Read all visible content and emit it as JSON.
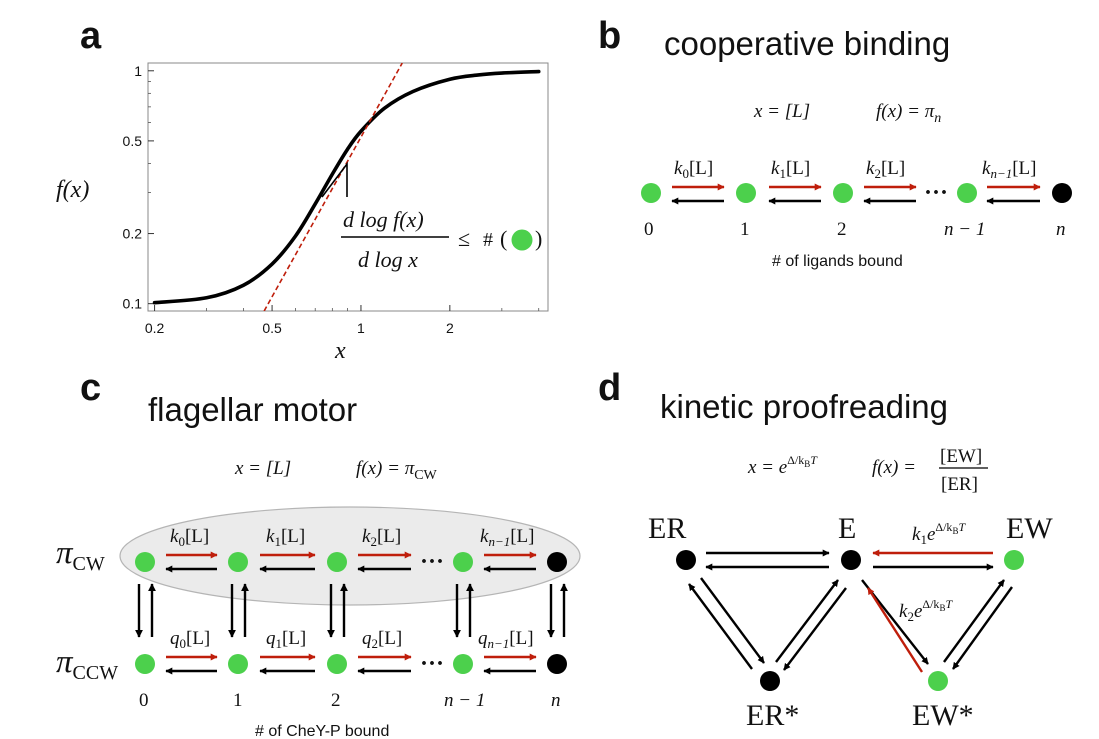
{
  "colors": {
    "bound_state": "#4cd04c",
    "unbound_state": "#000000",
    "forward_rate_arrow": "#bf1e0b",
    "reverse_rate_arrow": "#000000",
    "fit_line": "#bf1e0b",
    "ellipse_fill": "#ebebeb"
  },
  "panel_a": {
    "letter": "a",
    "chart_data": {
      "type": "line",
      "xscale": "log",
      "yscale": "log",
      "xlim": [
        0.19,
        4.3
      ],
      "ylim": [
        0.093,
        1.08
      ],
      "xticks": [
        0.2,
        0.5,
        1,
        2
      ],
      "xtick_labels": [
        "0.2",
        "0.5",
        "1",
        "2"
      ],
      "yticks": [
        0.1,
        0.2,
        0.5,
        1
      ],
      "ytick_labels": [
        "0.1",
        "0.2",
        "0.5",
        "1"
      ],
      "xlabel": "x",
      "ylabel": "f(x)",
      "series": [
        {
          "style": "solid",
          "color": "#000000",
          "x": [
            0.2,
            0.3,
            0.4,
            0.5,
            0.6,
            0.7,
            0.8,
            0.9,
            1.0,
            1.2,
            1.5,
            2.0,
            2.5,
            3.0,
            4.0
          ],
          "y": [
            0.101,
            0.106,
            0.12,
            0.148,
            0.195,
            0.268,
            0.36,
            0.46,
            0.55,
            0.69,
            0.815,
            0.92,
            0.96,
            0.978,
            0.992
          ]
        },
        {
          "style": "dashed",
          "color": "#bf1e0b",
          "x": [
            0.47,
            1.38
          ],
          "y": [
            0.093,
            1.08
          ]
        }
      ]
    },
    "annotation": {
      "numerator": "d log f(x)",
      "denominator": "d log x",
      "relation": "≤",
      "count_symbol": "#"
    }
  },
  "panel_b": {
    "letter": "b",
    "title": "cooperative binding",
    "x_def": "x = [L]",
    "f_def": "f(x) = π",
    "f_sub": "n",
    "rate_labels": [
      {
        "k": "k",
        "sub": "0",
        "conc": "[L]"
      },
      {
        "k": "k",
        "sub": "1",
        "conc": "[L]"
      },
      {
        "k": "k",
        "sub": "2",
        "conc": "[L]"
      },
      {
        "k": "k",
        "sub": "n−1",
        "conc": "[L]"
      }
    ],
    "state_labels": [
      "0",
      "1",
      "2",
      "n − 1",
      "n"
    ],
    "ellipsis": "···",
    "axis_caption": "# of ligands bound"
  },
  "panel_c": {
    "letter": "c",
    "title": "flagellar motor",
    "x_def": "x = [L]",
    "f_def": "f(x) = π",
    "f_sub": "CW",
    "row_cw": {
      "symbol": "π",
      "sub": "CW"
    },
    "row_ccw": {
      "symbol": "π",
      "sub": "CCW"
    },
    "cw_rates": [
      {
        "k": "k",
        "sub": "0",
        "conc": "[L]"
      },
      {
        "k": "k",
        "sub": "1",
        "conc": "[L]"
      },
      {
        "k": "k",
        "sub": "2",
        "conc": "[L]"
      },
      {
        "k": "k",
        "sub": "n−1",
        "conc": "[L]"
      }
    ],
    "ccw_rates": [
      {
        "k": "q",
        "sub": "0",
        "conc": "[L]"
      },
      {
        "k": "q",
        "sub": "1",
        "conc": "[L]"
      },
      {
        "k": "q",
        "sub": "2",
        "conc": "[L]"
      },
      {
        "k": "q",
        "sub": "n−1",
        "conc": "[L]"
      }
    ],
    "state_labels": [
      "0",
      "1",
      "2",
      "n − 1",
      "n"
    ],
    "ellipsis": "···",
    "axis_caption": "# of CheY-P bound"
  },
  "panel_d": {
    "letter": "d",
    "title": "kinetic proofreading",
    "x_def_base": "x = e",
    "x_def_exp": "Δ/k",
    "x_def_exp_sub": "B",
    "x_def_exp_T": "T",
    "f_def": "f(x) =",
    "f_num": "[EW]",
    "f_den": "[ER]",
    "nodes": {
      "ER": "ER",
      "E": "E",
      "EW": "EW",
      "ER_star": "ER*",
      "EW_star": "EW*"
    },
    "rate1": {
      "k": "k",
      "sub": "1",
      "e": "e",
      "exp": "Δ/k",
      "exp_sub": "B",
      "exp_T": "T"
    },
    "rate2": {
      "k": "k",
      "sub": "2",
      "e": "e",
      "exp": "Δ/k",
      "exp_sub": "B",
      "exp_T": "T"
    }
  }
}
